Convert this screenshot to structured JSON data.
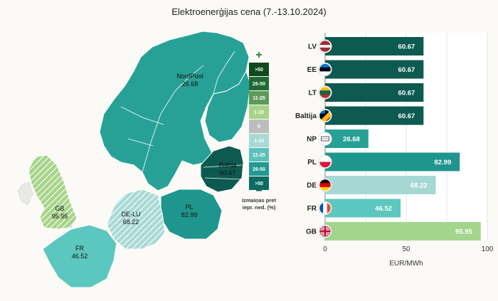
{
  "title": "Elektroenerģijas cena (7.-13.10.2024)",
  "map": {
    "regions": [
      {
        "key": "nordpool",
        "name": "NordPool",
        "value": "26.68"
      },
      {
        "key": "baltija",
        "name": "Baltija",
        "value": "60.67"
      },
      {
        "key": "pl",
        "name": "PL",
        "value": "82.99"
      },
      {
        "key": "delu",
        "name": "DE-LU",
        "value": "68.22"
      },
      {
        "key": "gb",
        "name": "GB",
        "value": "95.95"
      },
      {
        "key": "fr",
        "name": "FR",
        "value": "46.52"
      }
    ],
    "legend": {
      "plus": "+",
      "minus": "−",
      "caption_line1": "Izmaiņas pret",
      "caption_line2": "iepr. ned. (%)",
      "items": [
        {
          "label": ">50",
          "color": "#0f4a1f",
          "text": "#ffffff"
        },
        {
          "label": "26-50",
          "color": "#1f6a33",
          "text": "#ffffff"
        },
        {
          "label": "11-25",
          "color": "#5e9a5a",
          "text": "#ffffff"
        },
        {
          "label": "1-10",
          "color": "#a8d48a",
          "text": "#ffffff"
        },
        {
          "label": "0",
          "color": "#bdbdbd",
          "text": "#ffffff"
        },
        {
          "label": "1-10",
          "color": "#a9d9d5",
          "text": "#ffffff"
        },
        {
          "label": "11-25",
          "color": "#5cc2b9",
          "text": "#ffffff"
        },
        {
          "label": "26-50",
          "color": "#209a92",
          "text": "#ffffff"
        },
        {
          "label": ">50",
          "color": "#0c6b63",
          "text": "#ffffff"
        }
      ]
    }
  },
  "chart_data": {
    "type": "bar",
    "orientation": "horizontal",
    "categories": [
      "LV",
      "EE",
      "LT",
      "Baltija",
      "NP",
      "PL",
      "DE",
      "FR",
      "GB"
    ],
    "values": [
      60.67,
      60.67,
      60.67,
      60.67,
      26.68,
      82.99,
      68.22,
      46.52,
      95.95
    ],
    "value_labels": [
      "60.67",
      "60.67",
      "60.67",
      "60.67",
      "26.68",
      "82.99",
      "68.22",
      "46.52",
      "95.95"
    ],
    "bar_colors": [
      "#0d5a50",
      "#0d5a50",
      "#0d5a50",
      "#0d5a50",
      "#27a196",
      "#1f968d",
      "#a6d8d3",
      "#5cc7bf",
      "#a3d68c"
    ],
    "label_colors": [
      "#ffffff",
      "#ffffff",
      "#ffffff",
      "#ffffff",
      "#ffffff",
      "#ffffff",
      "#ffffff",
      "#ffffff",
      "#ffffff"
    ],
    "flag_icons": [
      "latvia-flag-icon",
      "estonia-flag-icon",
      "lithuania-flag-icon",
      "baltic-flag-icon",
      "nordpool-logo-icon",
      "poland-flag-icon",
      "germany-flag-icon",
      "france-flag-icon",
      "uk-flag-icon"
    ],
    "xlim": [
      0,
      100
    ],
    "xticks": [
      0,
      50,
      100
    ],
    "xlabel": "EUR/MWh",
    "grid": true
  }
}
